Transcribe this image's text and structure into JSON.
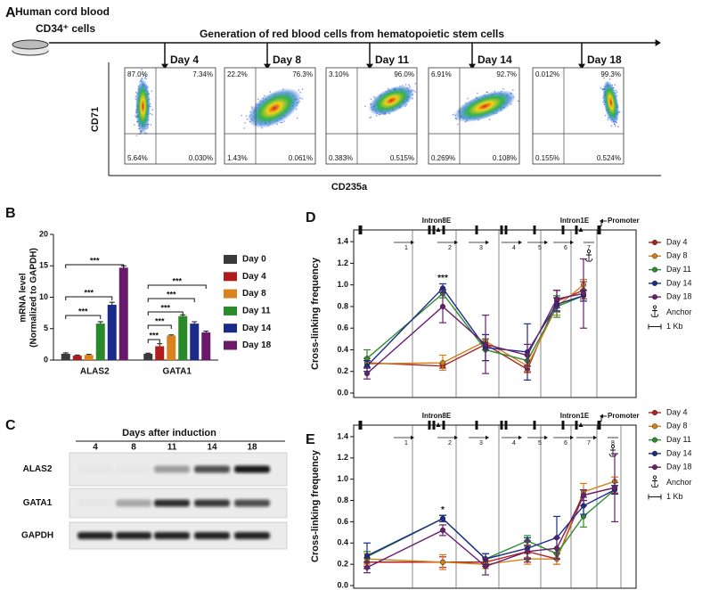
{
  "panel_a": {
    "label": "A",
    "source": [
      "Human cord blood",
      "CD34⁺ cells"
    ],
    "title": "Generation of red blood cells from hematopoietic stem cells",
    "y_label": "CD71",
    "x_label": "CD235a",
    "plots": [
      {
        "day": "Day 4",
        "quadrants": [
          "87.0%",
          "7.34%",
          "5.64%",
          "0.030%"
        ]
      },
      {
        "day": "Day 8",
        "quadrants": [
          "22.2%",
          "76.3%",
          "1.43%",
          "0.061%"
        ]
      },
      {
        "day": "Day 11",
        "quadrants": [
          "3.10%",
          "96.0%",
          "0.383%",
          "0.515%"
        ]
      },
      {
        "day": "Day 14",
        "quadrants": [
          "6.91%",
          "92.7%",
          "0.269%",
          "0.108%"
        ]
      },
      {
        "day": "Day 18",
        "quadrants": [
          "0.012%",
          "99.3%",
          "0.155%",
          "0.524%"
        ]
      }
    ]
  },
  "panel_c": {
    "label": "C",
    "title": "Days after induction",
    "lanes": [
      "4",
      "8",
      "11",
      "14",
      "18"
    ],
    "rows": [
      "ALAS2",
      "GATA1",
      "GAPDH"
    ]
  },
  "chart_data": [
    {
      "type": "bar",
      "panel": "B",
      "ylabel": [
        "mRNA level",
        "(Normalized to GAPDH)"
      ],
      "categories": [
        "ALAS2",
        "GATA1"
      ],
      "series": [
        {
          "name": "Day 0",
          "color": "#3a3a3a",
          "values": [
            1.0,
            1.0
          ],
          "errors": [
            0.15,
            0.1
          ]
        },
        {
          "name": "Day 4",
          "color": "#b01c1c",
          "values": [
            0.7,
            2.2
          ],
          "errors": [
            0.1,
            0.4
          ]
        },
        {
          "name": "Day 8",
          "color": "#d9821e",
          "values": [
            0.8,
            3.9
          ],
          "errors": [
            0.1,
            0.1
          ]
        },
        {
          "name": "Day 11",
          "color": "#2a8a2a",
          "values": [
            5.8,
            7.0
          ],
          "errors": [
            0.3,
            0.2
          ]
        },
        {
          "name": "Day 14",
          "color": "#1a2a8a",
          "values": [
            8.8,
            5.8
          ],
          "errors": [
            0.4,
            0.3
          ]
        },
        {
          "name": "Day 18",
          "color": "#6a1a6a",
          "values": [
            14.7,
            4.4
          ],
          "errors": [
            0.3,
            0.2
          ]
        }
      ],
      "ylim": [
        0,
        20
      ],
      "yticks": [
        0,
        5,
        10,
        15,
        20
      ],
      "annotations": [
        "***",
        "***",
        "***",
        "***",
        "***",
        "***",
        "***",
        "***"
      ]
    },
    {
      "type": "line",
      "panel": "D",
      "ylabel": "Cross-linking frequency",
      "region_labels": [
        "Intron8E",
        "Intron1E",
        "Promoter"
      ],
      "categories": [
        "1",
        "2",
        "3",
        "4",
        "5",
        "6",
        "7"
      ],
      "series": [
        {
          "name": "Day 4",
          "color": "#b22222",
          "values": [
            0.28,
            0.25,
            0.45,
            0.22,
            0.85,
            0.95,
            null
          ],
          "errors": [
            0.04,
            0.02,
            0.05,
            0.03,
            0.1,
            0.08,
            null
          ]
        },
        {
          "name": "Day 8",
          "color": "#d4801a",
          "values": [
            0.27,
            0.28,
            0.48,
            0.25,
            0.8,
            1.0,
            null
          ],
          "errors": [
            0.03,
            0.07,
            0.06,
            0.05,
            0.08,
            0.05,
            null
          ]
        },
        {
          "name": "Day 11",
          "color": "#2e8b2e",
          "values": [
            0.32,
            0.92,
            0.4,
            0.3,
            0.8,
            0.9,
            null
          ],
          "errors": [
            0.08,
            0.04,
            0.1,
            0.05,
            0.1,
            0.05,
            null
          ]
        },
        {
          "name": "Day 14",
          "color": "#1c2b8c",
          "values": [
            0.25,
            0.97,
            0.42,
            0.38,
            0.82,
            0.9,
            null
          ],
          "errors": [
            0.05,
            0.04,
            0.12,
            0.26,
            0.06,
            0.05,
            null
          ]
        },
        {
          "name": "Day 18",
          "color": "#6a1f6f",
          "values": [
            0.18,
            0.8,
            0.45,
            0.35,
            0.87,
            0.92,
            null
          ],
          "errors": [
            0.05,
            0.15,
            0.27,
            0.1,
            0.08,
            0.32,
            null
          ]
        }
      ],
      "ylim": [
        0,
        1.5
      ],
      "yticks": [
        {
          "value": 0,
          "label": "0.0"
        },
        {
          "value": 0.2,
          "label": "0.2"
        },
        {
          "value": 0.4,
          "label": "0.4"
        },
        {
          "value": 0.6,
          "label": "0.6"
        },
        {
          "value": 0.8,
          "label": "0.8"
        },
        {
          "value": 1.0,
          "label": "1.0"
        },
        {
          "value": 1.2,
          "label": "1.2"
        },
        {
          "value": 1.4,
          "label": "1.4"
        }
      ],
      "annotation": "***",
      "legend_extra": [
        "Anchor",
        "1 Kb"
      ]
    },
    {
      "type": "line",
      "panel": "E",
      "ylabel": "Cross-linking frequency",
      "region_labels": [
        "Intron8E",
        "Intron1E",
        "Promoter"
      ],
      "categories": [
        "1",
        "2",
        "3",
        "4",
        "5",
        "6",
        "7",
        "8"
      ],
      "series": [
        {
          "name": "Day 4",
          "color": "#b22222",
          "values": [
            0.22,
            0.22,
            0.22,
            0.32,
            0.25,
            0.85,
            0.92,
            null
          ],
          "errors": [
            0.04,
            0.05,
            0.04,
            0.06,
            0.05,
            0.05,
            0.05,
            null
          ]
        },
        {
          "name": "Day 8",
          "color": "#d4801a",
          "values": [
            0.25,
            0.22,
            0.2,
            0.25,
            0.25,
            0.88,
            0.98,
            null
          ],
          "errors": [
            0.05,
            0.07,
            0.04,
            0.05,
            0.05,
            0.08,
            0.04,
            null
          ]
        },
        {
          "name": "Day 11",
          "color": "#2e8b2e",
          "values": [
            0.27,
            0.63,
            0.25,
            0.42,
            0.3,
            0.65,
            0.9,
            null
          ],
          "errors": [
            0.05,
            0.03,
            0.05,
            0.05,
            0.05,
            0.1,
            0.04,
            null
          ]
        },
        {
          "name": "Day 14",
          "color": "#1c2b8c",
          "values": [
            0.28,
            0.63,
            0.25,
            0.35,
            0.45,
            0.75,
            0.9,
            null
          ],
          "errors": [
            0.12,
            0.03,
            0.05,
            0.1,
            0.2,
            0.08,
            0.04,
            null
          ]
        },
        {
          "name": "Day 18",
          "color": "#6a1f6f",
          "values": [
            0.17,
            0.52,
            0.18,
            0.32,
            0.35,
            0.85,
            0.92,
            null
          ],
          "errors": [
            0.05,
            0.05,
            0.08,
            0.1,
            0.1,
            0.05,
            0.32,
            null
          ]
        }
      ],
      "ylim": [
        0,
        1.5
      ],
      "yticks": [
        {
          "value": 0,
          "label": "0.0"
        },
        {
          "value": 0.2,
          "label": "0.2"
        },
        {
          "value": 0.4,
          "label": "0.4"
        },
        {
          "value": 0.6,
          "label": "0.6"
        },
        {
          "value": 0.8,
          "label": "0.8"
        },
        {
          "value": 1.0,
          "label": "1.0"
        },
        {
          "value": 1.2,
          "label": "1.2"
        },
        {
          "value": 1.4,
          "label": "1.4"
        }
      ],
      "annotation": "*",
      "legend_extra": [
        "Anchor",
        "1 Kb"
      ]
    }
  ]
}
